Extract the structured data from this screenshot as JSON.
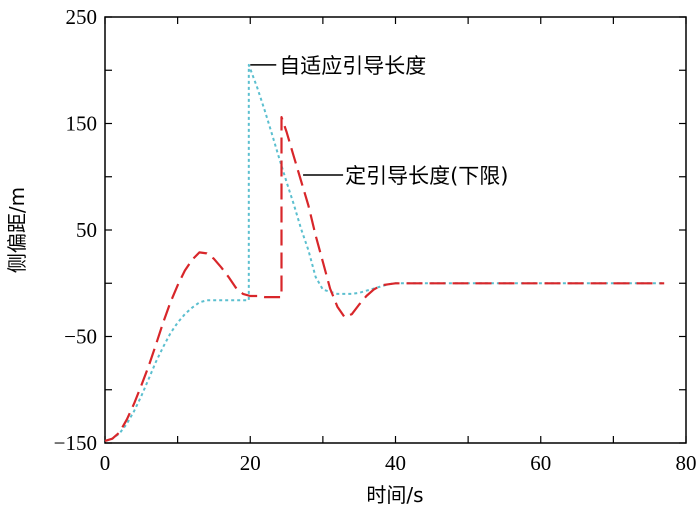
{
  "chart_data": {
    "type": "line",
    "title": "",
    "xlabel": "时间/s",
    "ylabel": "侧偏距/m",
    "xlim": [
      0,
      80
    ],
    "ylim": [
      -150,
      250
    ],
    "xticks": [
      "0",
      "20",
      "40",
      "60",
      "80"
    ],
    "yticks": [
      "-150",
      "-50",
      "50",
      "150",
      "250"
    ],
    "grid": false,
    "legend": "none",
    "series": [
      {
        "name": "自适应引导长度",
        "color": "#5bbfcf",
        "style": "dotted",
        "x": [
          0,
          1,
          2,
          3,
          4,
          5,
          6,
          7,
          8,
          9,
          10,
          11,
          12,
          13,
          14,
          15,
          16,
          17,
          18,
          19,
          19.8,
          19.8,
          21,
          22,
          23,
          24,
          25,
          26,
          27,
          28,
          29,
          30,
          31,
          32,
          33,
          34,
          35,
          36,
          37,
          38,
          39,
          40,
          45,
          50,
          55,
          60,
          65,
          70,
          77
        ],
        "y": [
          -148,
          -146,
          -141,
          -132,
          -120,
          -106,
          -90,
          -74,
          -60,
          -47,
          -37,
          -29,
          -23,
          -18,
          -16,
          -16,
          -16,
          -16,
          -16,
          -16,
          -16,
          205,
          183,
          162,
          140,
          117,
          95,
          74,
          51,
          31,
          6,
          -6,
          -8,
          -10,
          -10,
          -10,
          -9,
          -7,
          -5,
          -3,
          -1,
          0,
          0,
          0,
          0,
          0,
          0,
          0,
          0
        ]
      },
      {
        "name": "定引导长度(下限)",
        "color": "#d8262a",
        "style": "dashed",
        "x": [
          0,
          1,
          2,
          3,
          4,
          5,
          6,
          7,
          8,
          9,
          10,
          11,
          12,
          13,
          14,
          15,
          16,
          17,
          18,
          19,
          20,
          21,
          22,
          23,
          24,
          24.3,
          24.3,
          25,
          26,
          27,
          28,
          29,
          30,
          31,
          32,
          33,
          34,
          35,
          36,
          37,
          38,
          39,
          40,
          45,
          50,
          55,
          60,
          65,
          70,
          77
        ],
        "y": [
          -148,
          -146,
          -140,
          -128,
          -113,
          -96,
          -78,
          -58,
          -37,
          -18,
          -2,
          12,
          22,
          29,
          28,
          23,
          15,
          6,
          -4,
          -10,
          -12,
          -12,
          -13,
          -13,
          -13,
          -13,
          156,
          142,
          119,
          96,
          73,
          45,
          20,
          -5,
          -22,
          -32,
          -29,
          -20,
          -12,
          -6,
          -2,
          -1,
          0,
          0,
          0,
          0,
          0,
          0,
          0,
          0
        ]
      }
    ],
    "annotations": [
      {
        "text": "自适应引导长度",
        "x": 20,
        "y": 205
      },
      {
        "text": "定引导长度(下限)",
        "x": 27,
        "y": 97
      }
    ]
  }
}
